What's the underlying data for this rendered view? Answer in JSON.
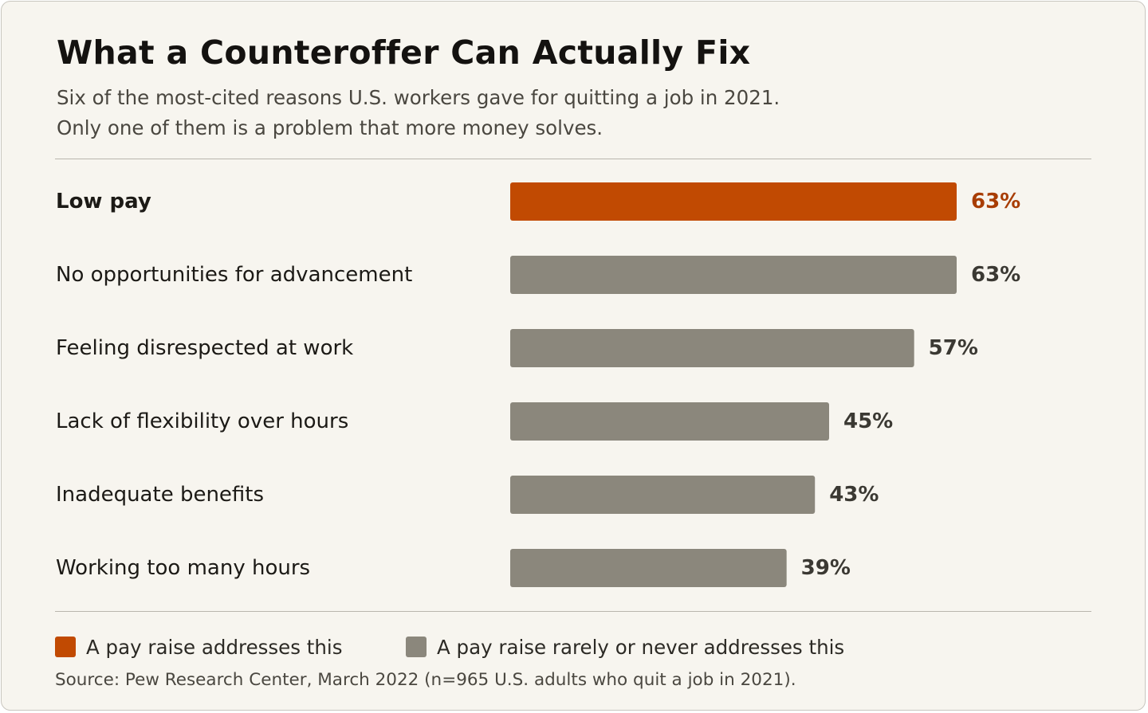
{
  "title": "What a Counteroffer Can Actually Fix",
  "subtitle_lines": [
    "Six of the most-cited reasons U.S. workers gave for quitting a job in 2021.",
    "Only one of them is a problem that more money solves."
  ],
  "chart_data": {
    "type": "bar",
    "orientation": "horizontal",
    "categories": [
      "Low pay",
      "No opportunities for advancement",
      "Feeling disrespected at work",
      "Lack of flexibility over hours",
      "Inadequate benefits",
      "Working too many hours"
    ],
    "values": [
      63,
      63,
      57,
      45,
      43,
      39
    ],
    "value_labels": [
      "63%",
      "63%",
      "57%",
      "45%",
      "43%",
      "39%"
    ],
    "highlight": [
      true,
      false,
      false,
      false,
      false,
      false
    ],
    "xlim": [
      0,
      100
    ],
    "grid": false,
    "legend_placement": "bottom-left",
    "colors": {
      "highlight": "#c14a02",
      "highlight_label": "#a83d04",
      "muted": "#8b877c",
      "muted_label": "#3b3933"
    }
  },
  "legend": [
    {
      "label": "A pay raise addresses this",
      "color": "#c14a02"
    },
    {
      "label": "A pay raise rarely or never addresses this",
      "color": "#8b877c"
    }
  ],
  "source": "Source: Pew Research Center, March 2022 (n=965 U.S. adults who quit a job in 2021)."
}
